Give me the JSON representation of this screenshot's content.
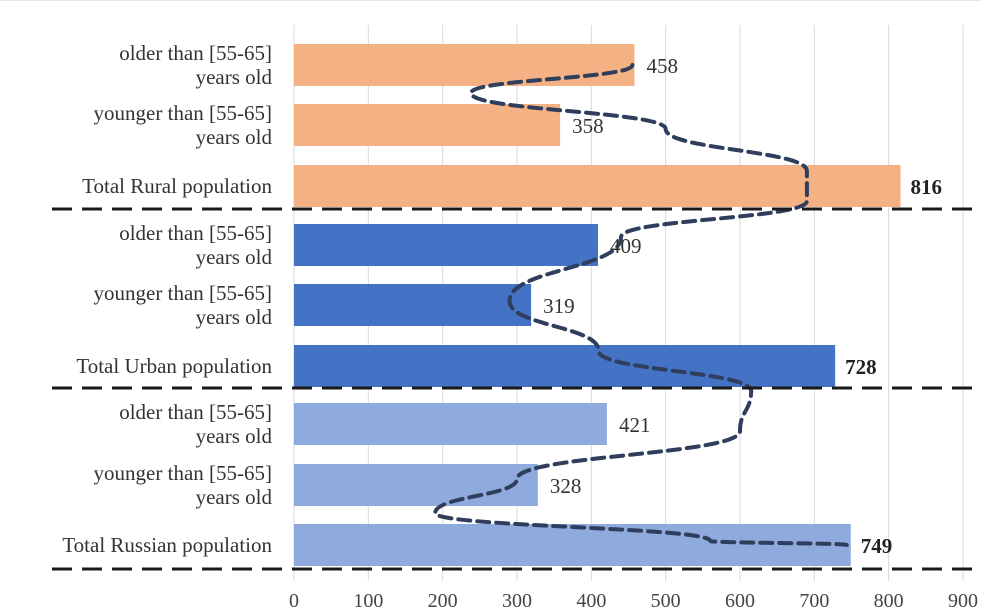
{
  "chart_data": {
    "type": "bar",
    "orientation": "horizontal",
    "categories": [
      [
        "older than [55-65]",
        "years old"
      ],
      [
        "younger than [55-65]",
        "years old"
      ],
      [
        "Total Rural population"
      ],
      [
        "older than [55-65]",
        "years old"
      ],
      [
        "younger than [55-65]",
        "years old"
      ],
      [
        "Total Urban population"
      ],
      [
        "older than [55-65]",
        "years old"
      ],
      [
        "younger than [55-65]",
        "years old"
      ],
      [
        "Total Russian population"
      ]
    ],
    "values": [
      458,
      358,
      816,
      409,
      319,
      728,
      421,
      328,
      749
    ],
    "value_labels": [
      "458",
      "358",
      "816",
      "409",
      "319",
      "728",
      "421",
      "328",
      "749"
    ],
    "bold_labels": [
      false,
      false,
      true,
      false,
      false,
      true,
      false,
      false,
      true
    ],
    "group_colors": [
      "#f4b183",
      "#4472c4",
      "#8faadc"
    ],
    "xlim": [
      0,
      900
    ],
    "xticks": [
      0,
      100,
      200,
      300,
      400,
      500,
      600,
      700,
      800,
      900
    ],
    "grid": true,
    "trend_line": {
      "style": "dashed",
      "color": "#2f3e5c"
    },
    "separator_lines": {
      "style": "dashed",
      "color": "#1a1a1a"
    }
  }
}
